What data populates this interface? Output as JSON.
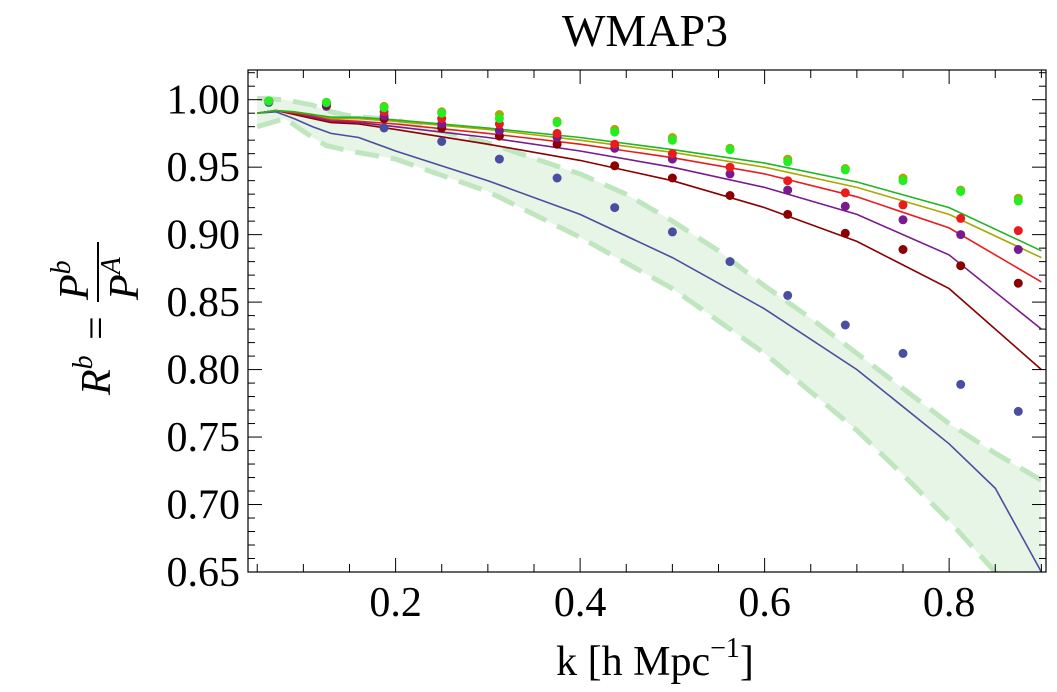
{
  "chart_data": {
    "type": "line",
    "title": "WMAP3",
    "xlabel": "k [h Mpc",
    "xlabel_sup": "−1",
    "xlabel_close": "]",
    "ylabel_left": "R",
    "ylabel_left_sup": "b",
    "ylabel_eq": "=",
    "ylabel_num": "P",
    "ylabel_num_sup": "b",
    "ylabel_den": "P",
    "ylabel_den_sup": "A",
    "xlim": [
      0.04,
      0.905
    ],
    "ylim": [
      0.65,
      1.022
    ],
    "x_ticks": [
      {
        "value": 0.2,
        "label": "0.2"
      },
      {
        "value": 0.4,
        "label": "0.4"
      },
      {
        "value": 0.6,
        "label": "0.6"
      },
      {
        "value": 0.8,
        "label": "0.8"
      }
    ],
    "y_ticks": [
      {
        "value": 0.65,
        "label": "0.65"
      },
      {
        "value": 0.7,
        "label": "0.70"
      },
      {
        "value": 0.75,
        "label": "0.75"
      },
      {
        "value": 0.8,
        "label": "0.80"
      },
      {
        "value": 0.85,
        "label": "0.85"
      },
      {
        "value": 0.9,
        "label": "0.90"
      },
      {
        "value": 0.95,
        "label": "0.95"
      },
      {
        "value": 1.0,
        "label": "1.00"
      }
    ],
    "band": {
      "fill_color": "#e6f5e6",
      "line_color": "#bfe6bf",
      "upper": [
        [
          0.05,
          1.001
        ],
        [
          0.08,
          1.0
        ],
        [
          0.11,
          0.996
        ],
        [
          0.125,
          0.992
        ],
        [
          0.15,
          0.988
        ],
        [
          0.2,
          0.985
        ],
        [
          0.3,
          0.968
        ],
        [
          0.4,
          0.945
        ],
        [
          0.45,
          0.93
        ],
        [
          0.5,
          0.91
        ],
        [
          0.55,
          0.888
        ],
        [
          0.6,
          0.862
        ],
        [
          0.65,
          0.838
        ],
        [
          0.7,
          0.812
        ],
        [
          0.75,
          0.786
        ],
        [
          0.8,
          0.76
        ],
        [
          0.85,
          0.738
        ],
        [
          0.9,
          0.718
        ]
      ],
      "lower": [
        [
          0.05,
          0.98
        ],
        [
          0.08,
          0.986
        ],
        [
          0.11,
          0.972
        ],
        [
          0.125,
          0.966
        ],
        [
          0.15,
          0.962
        ],
        [
          0.2,
          0.956
        ],
        [
          0.3,
          0.932
        ],
        [
          0.4,
          0.898
        ],
        [
          0.5,
          0.86
        ],
        [
          0.6,
          0.812
        ],
        [
          0.7,
          0.755
        ],
        [
          0.75,
          0.722
        ],
        [
          0.8,
          0.688
        ],
        [
          0.83,
          0.665
        ],
        [
          0.85,
          0.65
        ],
        [
          0.9,
          0.615
        ]
      ]
    },
    "series": [
      {
        "color": "#4a4ea0",
        "line": [
          [
            0.05,
            0.99
          ],
          [
            0.07,
            0.991
          ],
          [
            0.09,
            0.986
          ],
          [
            0.11,
            0.98
          ],
          [
            0.13,
            0.975
          ],
          [
            0.16,
            0.972
          ],
          [
            0.2,
            0.962
          ],
          [
            0.3,
            0.94
          ],
          [
            0.4,
            0.915
          ],
          [
            0.5,
            0.883
          ],
          [
            0.6,
            0.845
          ],
          [
            0.7,
            0.8
          ],
          [
            0.8,
            0.745
          ],
          [
            0.85,
            0.712
          ],
          [
            0.9,
            0.65
          ]
        ],
        "points": [
          [
            0.0625,
            0.998
          ],
          [
            0.125,
            0.995
          ],
          [
            0.1875,
            0.979
          ],
          [
            0.25,
            0.969
          ],
          [
            0.3125,
            0.956
          ],
          [
            0.375,
            0.942
          ],
          [
            0.4375,
            0.92
          ],
          [
            0.5,
            0.902
          ],
          [
            0.5625,
            0.88
          ],
          [
            0.625,
            0.855
          ],
          [
            0.6875,
            0.833
          ],
          [
            0.75,
            0.812
          ],
          [
            0.8125,
            0.789
          ],
          [
            0.875,
            0.769
          ]
        ]
      },
      {
        "color": "#8b0000",
        "line": [
          [
            0.05,
            0.99
          ],
          [
            0.07,
            0.992
          ],
          [
            0.09,
            0.989
          ],
          [
            0.11,
            0.986
          ],
          [
            0.13,
            0.983
          ],
          [
            0.16,
            0.982
          ],
          [
            0.2,
            0.978
          ],
          [
            0.3,
            0.967
          ],
          [
            0.4,
            0.955
          ],
          [
            0.5,
            0.94
          ],
          [
            0.6,
            0.92
          ],
          [
            0.7,
            0.895
          ],
          [
            0.8,
            0.86
          ],
          [
            0.9,
            0.8
          ]
        ],
        "points": [
          [
            0.0625,
            0.999
          ],
          [
            0.125,
            0.996
          ],
          [
            0.1875,
            0.986
          ],
          [
            0.25,
            0.979
          ],
          [
            0.3125,
            0.973
          ],
          [
            0.375,
            0.967
          ],
          [
            0.4375,
            0.951
          ],
          [
            0.5,
            0.942
          ],
          [
            0.5625,
            0.929
          ],
          [
            0.625,
            0.915
          ],
          [
            0.6875,
            0.901
          ],
          [
            0.75,
            0.889
          ],
          [
            0.8125,
            0.877
          ],
          [
            0.875,
            0.864
          ]
        ]
      },
      {
        "color": "#7a1a8f",
        "line": [
          [
            0.05,
            0.99
          ],
          [
            0.07,
            0.992
          ],
          [
            0.09,
            0.99
          ],
          [
            0.11,
            0.987
          ],
          [
            0.13,
            0.984
          ],
          [
            0.16,
            0.983
          ],
          [
            0.2,
            0.98
          ],
          [
            0.3,
            0.972
          ],
          [
            0.4,
            0.962
          ],
          [
            0.5,
            0.95
          ],
          [
            0.6,
            0.935
          ],
          [
            0.7,
            0.915
          ],
          [
            0.8,
            0.885
          ],
          [
            0.9,
            0.83
          ]
        ],
        "points": [
          [
            0.0625,
            0.999
          ],
          [
            0.125,
            0.997
          ],
          [
            0.1875,
            0.988
          ],
          [
            0.25,
            0.982
          ],
          [
            0.3125,
            0.977
          ],
          [
            0.375,
            0.972
          ],
          [
            0.4375,
            0.964
          ],
          [
            0.5,
            0.956
          ],
          [
            0.5625,
            0.945
          ],
          [
            0.625,
            0.933
          ],
          [
            0.6875,
            0.921
          ],
          [
            0.75,
            0.911
          ],
          [
            0.8125,
            0.9
          ],
          [
            0.875,
            0.889
          ]
        ]
      },
      {
        "color": "#e81c1c",
        "line": [
          [
            0.05,
            0.99
          ],
          [
            0.07,
            0.992
          ],
          [
            0.09,
            0.99
          ],
          [
            0.11,
            0.988
          ],
          [
            0.13,
            0.985
          ],
          [
            0.16,
            0.984
          ],
          [
            0.2,
            0.982
          ],
          [
            0.3,
            0.975
          ],
          [
            0.4,
            0.967
          ],
          [
            0.5,
            0.957
          ],
          [
            0.6,
            0.945
          ],
          [
            0.7,
            0.928
          ],
          [
            0.8,
            0.905
          ],
          [
            0.9,
            0.865
          ]
        ],
        "points": [
          [
            0.0625,
            0.999
          ],
          [
            0.125,
            0.998
          ],
          [
            0.1875,
            0.991
          ],
          [
            0.25,
            0.986
          ],
          [
            0.3125,
            0.982
          ],
          [
            0.375,
            0.975
          ],
          [
            0.4375,
            0.967
          ],
          [
            0.5,
            0.96
          ],
          [
            0.5625,
            0.95
          ],
          [
            0.625,
            0.94
          ],
          [
            0.6875,
            0.931
          ],
          [
            0.75,
            0.922
          ],
          [
            0.8125,
            0.912
          ],
          [
            0.875,
            0.903
          ]
        ]
      },
      {
        "color": "#a8a800",
        "line": [
          [
            0.05,
            0.99
          ],
          [
            0.07,
            0.992
          ],
          [
            0.09,
            0.991
          ],
          [
            0.11,
            0.989
          ],
          [
            0.13,
            0.986
          ],
          [
            0.16,
            0.986
          ],
          [
            0.2,
            0.984
          ],
          [
            0.3,
            0.978
          ],
          [
            0.4,
            0.97
          ],
          [
            0.5,
            0.961
          ],
          [
            0.6,
            0.95
          ],
          [
            0.7,
            0.935
          ],
          [
            0.8,
            0.915
          ],
          [
            0.9,
            0.883
          ]
        ],
        "points": [
          [
            0.0625,
            0.999
          ],
          [
            0.125,
            0.998
          ],
          [
            0.1875,
            0.995
          ],
          [
            0.25,
            0.991
          ],
          [
            0.3125,
            0.989
          ],
          [
            0.375,
            0.984
          ],
          [
            0.4375,
            0.978
          ],
          [
            0.5,
            0.972
          ],
          [
            0.5625,
            0.964
          ],
          [
            0.625,
            0.956
          ],
          [
            0.6875,
            0.949
          ],
          [
            0.75,
            0.942
          ],
          [
            0.8125,
            0.933
          ],
          [
            0.875,
            0.927
          ]
        ]
      },
      {
        "color": "#22b522",
        "line": [
          [
            0.05,
            0.99
          ],
          [
            0.07,
            0.992
          ],
          [
            0.09,
            0.991
          ],
          [
            0.11,
            0.989
          ],
          [
            0.13,
            0.987
          ],
          [
            0.16,
            0.987
          ],
          [
            0.2,
            0.985
          ],
          [
            0.3,
            0.979
          ],
          [
            0.4,
            0.972
          ],
          [
            0.5,
            0.963
          ],
          [
            0.6,
            0.953
          ],
          [
            0.7,
            0.939
          ],
          [
            0.8,
            0.92
          ],
          [
            0.9,
            0.888
          ]
        ],
        "points": []
      },
      {
        "color": "#22ee22",
        "line": [],
        "points": [
          [
            0.0625,
            0.999
          ],
          [
            0.125,
            0.998
          ],
          [
            0.1875,
            0.994
          ],
          [
            0.25,
            0.99
          ],
          [
            0.3125,
            0.986
          ],
          [
            0.375,
            0.983
          ],
          [
            0.4375,
            0.976
          ],
          [
            0.5,
            0.97
          ],
          [
            0.5625,
            0.963
          ],
          [
            0.625,
            0.954
          ],
          [
            0.6875,
            0.948
          ],
          [
            0.75,
            0.94
          ],
          [
            0.8125,
            0.932
          ],
          [
            0.875,
            0.925
          ]
        ]
      }
    ]
  }
}
